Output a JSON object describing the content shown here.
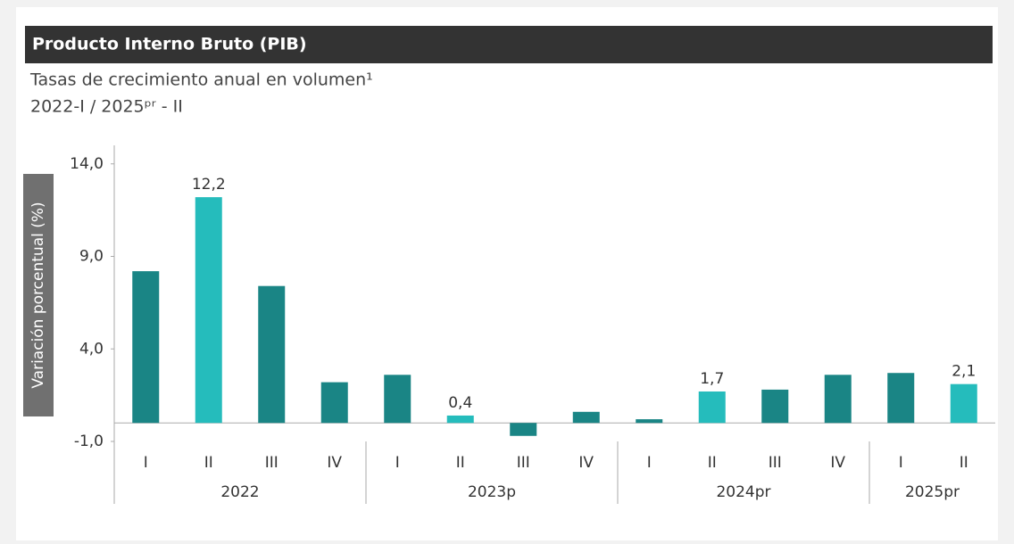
{
  "chart_data": {
    "type": "bar",
    "title": "Producto Interno Bruto (PIB)",
    "subtitle": "Tasas de crecimiento anual en volumen¹",
    "period": "2022-I / 2025ᵖʳ - II",
    "y_label": "Variación porcentual (%)",
    "groups": [
      {
        "name": "2022",
        "categories": [
          "I",
          "II",
          "III",
          "IV"
        ],
        "values": [
          8.2,
          12.2,
          7.4,
          2.2
        ],
        "value_labels": [
          null,
          "12,2",
          null,
          null
        ],
        "colors": [
          "#1a8585",
          "#25bcbc",
          "#1a8585",
          "#1a8585"
        ]
      },
      {
        "name": "2023p",
        "categories": [
          "I",
          "II",
          "III",
          "IV"
        ],
        "values": [
          2.6,
          0.4,
          -0.7,
          0.6
        ],
        "value_labels": [
          null,
          "0,4",
          null,
          null
        ],
        "colors": [
          "#1a8585",
          "#25bcbc",
          "#1a8585",
          "#1a8585"
        ]
      },
      {
        "name": "2024pr",
        "categories": [
          "I",
          "II",
          "III",
          "IV"
        ],
        "values": [
          0.2,
          1.7,
          1.8,
          2.6
        ],
        "value_labels": [
          null,
          "1,7",
          null,
          null
        ],
        "colors": [
          "#1a8585",
          "#25bcbc",
          "#1a8585",
          "#1a8585"
        ]
      },
      {
        "name": "2025pr",
        "categories": [
          "I",
          "II"
        ],
        "values": [
          2.7,
          2.1
        ],
        "value_labels": [
          null,
          "2,1"
        ],
        "colors": [
          "#1a8585",
          "#25bcbc"
        ]
      }
    ],
    "ylim": [
      -1,
      15
    ],
    "yticks": [
      {
        "value": -1,
        "label": "-1,0"
      },
      {
        "value": 4,
        "label": "4,0"
      },
      {
        "value": 9,
        "label": "9,0"
      },
      {
        "value": 14,
        "label": "14,0"
      }
    ]
  }
}
